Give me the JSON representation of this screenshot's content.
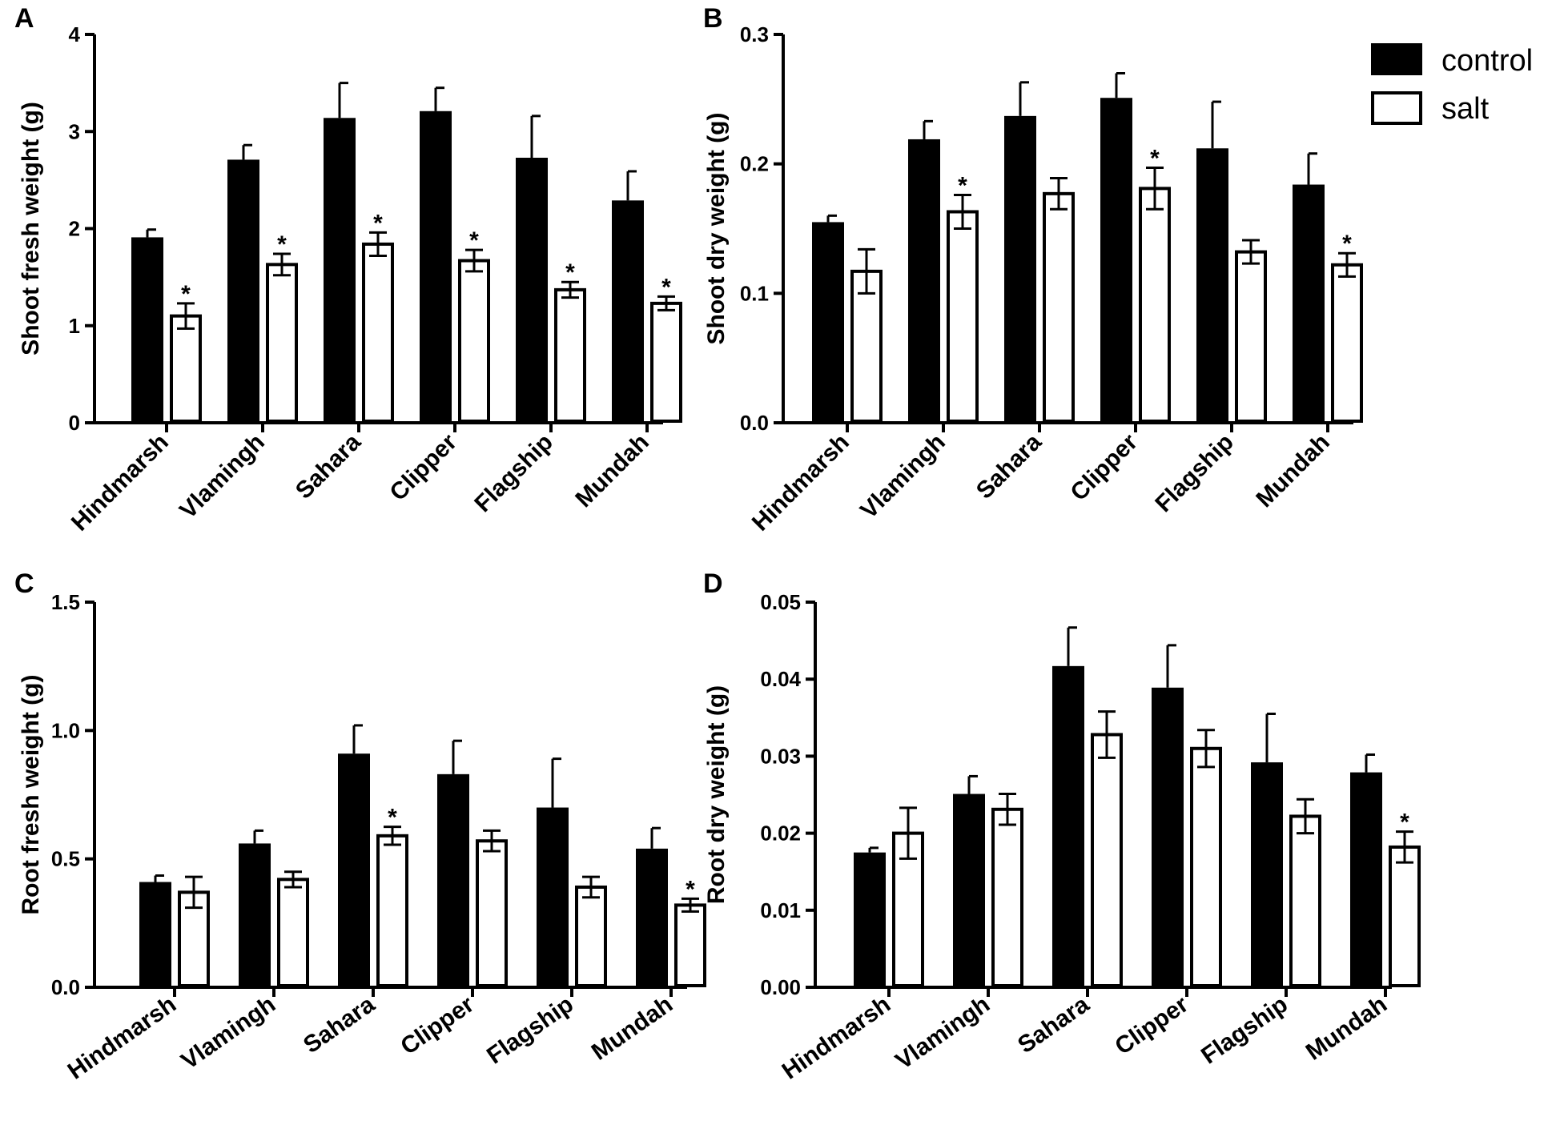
{
  "legend": {
    "entries": [
      "control",
      "salt"
    ],
    "position": "top-right"
  },
  "colors": {
    "control": "#000000",
    "salt": "#ffffff"
  },
  "chart_data": [
    {
      "panel": "A",
      "type": "bar",
      "ylabel": "Shoot fresh weight (g)",
      "ylim": [
        0,
        4
      ],
      "yticks": [
        "0",
        "1",
        "2",
        "3",
        "4"
      ],
      "ytick_values": [
        0,
        1,
        2,
        3,
        4
      ],
      "categories": [
        "Hindmarsh",
        "Vlamingh",
        "Sahara",
        "Clipper",
        "Flagship",
        "Mundah"
      ],
      "series": [
        {
          "name": "control",
          "values": [
            1.91,
            2.71,
            3.14,
            3.21,
            2.73,
            2.29
          ],
          "errors": [
            0.08,
            0.15,
            0.36,
            0.24,
            0.43,
            0.3
          ]
        },
        {
          "name": "salt",
          "values": [
            1.1,
            1.63,
            1.84,
            1.67,
            1.37,
            1.23
          ],
          "errors": [
            0.13,
            0.11,
            0.12,
            0.11,
            0.08,
            0.07
          ]
        }
      ],
      "significance": [
        [
          "*",
          "*",
          "*",
          "*",
          "*",
          "*"
        ]
      ]
    },
    {
      "panel": "B",
      "type": "bar",
      "ylabel": "Shoot dry weight (g)",
      "ylim": [
        0,
        0.3
      ],
      "yticks": [
        "0.0",
        "0.1",
        "0.2",
        "0.3"
      ],
      "ytick_values": [
        0,
        0.1,
        0.2,
        0.3
      ],
      "categories": [
        "Hindmarsh",
        "Vlamingh",
        "Sahara",
        "Clipper",
        "Flagship",
        "Mundah"
      ],
      "series": [
        {
          "name": "control",
          "values": [
            0.155,
            0.219,
            0.237,
            0.251,
            0.212,
            0.184
          ],
          "errors": [
            0.005,
            0.014,
            0.026,
            0.019,
            0.036,
            0.024
          ]
        },
        {
          "name": "salt",
          "values": [
            0.117,
            0.163,
            0.177,
            0.181,
            0.132,
            0.122
          ],
          "errors": [
            0.017,
            0.013,
            0.012,
            0.016,
            0.009,
            0.009
          ]
        }
      ],
      "significance": [
        [
          "",
          "*",
          "",
          "*",
          "",
          "*"
        ]
      ]
    },
    {
      "panel": "C",
      "type": "bar",
      "ylabel": "Root fresh weight (g)",
      "ylim": [
        0,
        1.5
      ],
      "yticks": [
        "0.0",
        "0.5",
        "1.0",
        "1.5"
      ],
      "ytick_values": [
        0,
        0.5,
        1.0,
        1.5
      ],
      "categories": [
        "Hindmarsh",
        "Vlamingh",
        "Sahara",
        "Clipper",
        "Flagship",
        "Mundah"
      ],
      "series": [
        {
          "name": "control",
          "values": [
            0.41,
            0.56,
            0.91,
            0.83,
            0.7,
            0.54
          ],
          "errors": [
            0.025,
            0.05,
            0.11,
            0.13,
            0.19,
            0.08
          ]
        },
        {
          "name": "salt",
          "values": [
            0.37,
            0.42,
            0.59,
            0.57,
            0.39,
            0.32
          ],
          "errors": [
            0.06,
            0.03,
            0.035,
            0.04,
            0.04,
            0.025
          ]
        }
      ],
      "significance": [
        [
          "",
          "",
          "*",
          "",
          "",
          "*"
        ]
      ]
    },
    {
      "panel": "D",
      "type": "bar",
      "ylabel": "Root dry weight (g)",
      "ylim": [
        0,
        0.05
      ],
      "yticks": [
        "0.00",
        "0.01",
        "0.02",
        "0.03",
        "0.04",
        "0.05"
      ],
      "ytick_values": [
        0,
        0.01,
        0.02,
        0.03,
        0.04,
        0.05
      ],
      "categories": [
        "Hindmarsh",
        "Vlamingh",
        "Sahara",
        "Clipper",
        "Flagship",
        "Mundah"
      ],
      "series": [
        {
          "name": "control",
          "values": [
            0.0175,
            0.0251,
            0.0417,
            0.0389,
            0.0292,
            0.0279
          ],
          "errors": [
            0.0006,
            0.0023,
            0.005,
            0.0055,
            0.0063,
            0.0023
          ]
        },
        {
          "name": "salt",
          "values": [
            0.02,
            0.0231,
            0.0328,
            0.031,
            0.0222,
            0.0182
          ],
          "errors": [
            0.0033,
            0.002,
            0.003,
            0.0024,
            0.0022,
            0.002
          ]
        }
      ],
      "significance": [
        [
          "",
          "",
          "",
          "",
          "",
          "*"
        ]
      ]
    }
  ]
}
